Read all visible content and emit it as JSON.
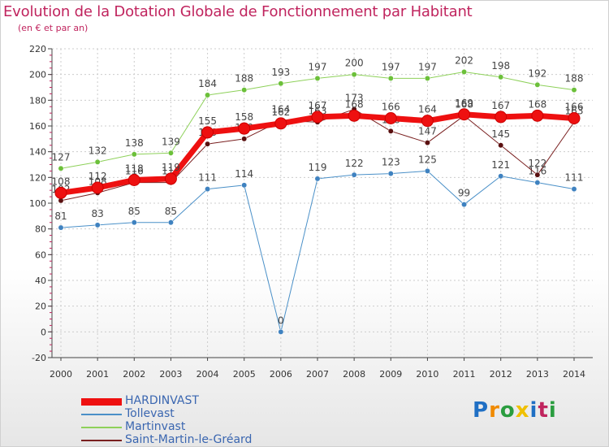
{
  "title": "Evolution de la Dotation Globale de Fonctionnement par Habitant",
  "subtitle": "(en € et par an)",
  "logo": {
    "text": "Proxiti",
    "colors": [
      "#1f6fc4",
      "#f08a00",
      "#2a9d3f",
      "#f0c000",
      "#1f6fc4",
      "#c0245e",
      "#2a9d3f"
    ]
  },
  "chart_data": {
    "type": "line",
    "x": [
      "2000",
      "2001",
      "2002",
      "2003",
      "2004",
      "2005",
      "2006",
      "2007",
      "2008",
      "2009",
      "2010",
      "2011",
      "2012",
      "2013",
      "2014"
    ],
    "ylim": [
      -20,
      220
    ],
    "yticks": [
      -20,
      0,
      20,
      40,
      60,
      80,
      100,
      120,
      140,
      160,
      180,
      200,
      220
    ],
    "grid": true,
    "legend_position": "bottom-left",
    "series": [
      {
        "name": "Tollevast",
        "color": "#4a90c8",
        "marker": "#3f82c0",
        "width": 1,
        "values": [
          81,
          83,
          85,
          85,
          111,
          114,
          0,
          119,
          122,
          123,
          125,
          99,
          121,
          116,
          111
        ],
        "labels": [
          "81",
          "83",
          "85",
          "85",
          "111",
          "114",
          "0",
          "119",
          "122",
          "123",
          "125",
          "99",
          "121",
          "116",
          "111"
        ]
      },
      {
        "name": "Martinvast",
        "color": "#8ed15a",
        "marker": "#6cc03a",
        "width": 1,
        "values": [
          127,
          132,
          138,
          139,
          184,
          188,
          193,
          197,
          200,
          197,
          197,
          202,
          198,
          192,
          188
        ],
        "labels": [
          "127",
          "132",
          "138",
          "139",
          "184",
          "188",
          "193",
          "197",
          "200",
          "197",
          "197",
          "202",
          "198",
          "192",
          "188"
        ]
      },
      {
        "name": "Saint-Martin-le-Gréard",
        "color": "#7a2020",
        "marker": "#5a1010",
        "width": 1,
        "values": [
          102,
          108,
          116,
          116,
          146,
          150,
          164,
          163,
          173,
          156,
          147,
          168,
          145,
          122,
          163
        ],
        "labels": [
          "102",
          "108",
          "116",
          "116",
          "146",
          "150",
          "164",
          "163",
          "173",
          "156",
          "147",
          "168",
          "145",
          "122",
          "163"
        ]
      },
      {
        "name": "HARDINVAST",
        "color": "#ee1010",
        "marker": "#ee1010",
        "width": 7,
        "values": [
          108,
          112,
          118,
          119,
          155,
          158,
          162,
          167,
          168,
          166,
          164,
          169,
          167,
          168,
          166
        ],
        "labels": [
          "108",
          "112",
          "118",
          "119",
          "155",
          "158",
          "162",
          "167",
          "168",
          "166",
          "164",
          "169",
          "167",
          "168",
          "166"
        ]
      }
    ],
    "legend_order": [
      "HARDINVAST",
      "Tollevast",
      "Martinvast",
      "Saint-Martin-le-Gréard"
    ]
  }
}
